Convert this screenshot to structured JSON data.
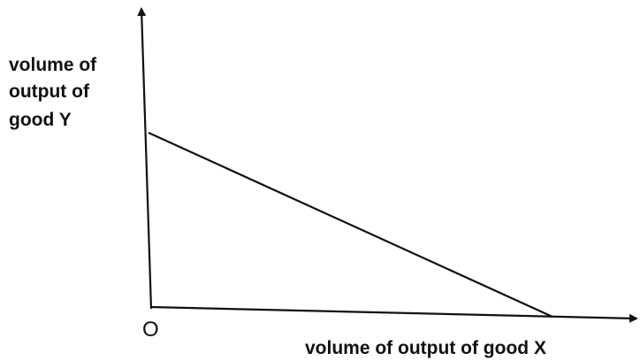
{
  "y_axis_label": [
    "volume of",
    "output of",
    "good Y"
  ],
  "origin_label": "O",
  "x_axis_label": "volume of output of good X"
}
